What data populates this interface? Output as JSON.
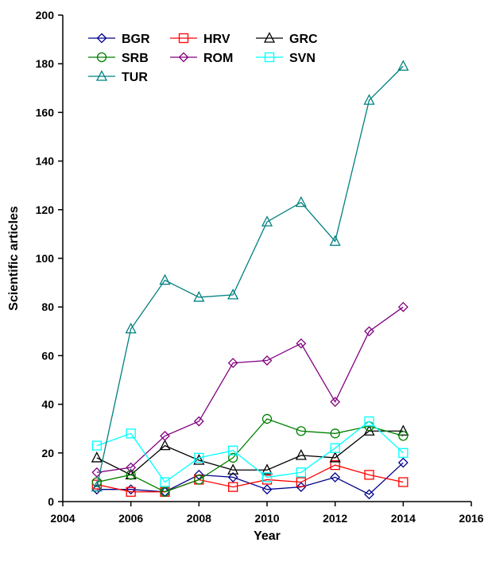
{
  "chart_data": {
    "type": "line",
    "title": "",
    "xlabel": "Year",
    "ylabel": "Scientific articles",
    "xlim": [
      2004,
      2016
    ],
    "ylim": [
      0,
      200
    ],
    "xticks": [
      2004,
      2006,
      2008,
      2010,
      2012,
      2014,
      2016
    ],
    "yticks": [
      0,
      20,
      40,
      60,
      80,
      100,
      120,
      140,
      160,
      180,
      200
    ],
    "x": [
      2005,
      2006,
      2007,
      2008,
      2009,
      2010,
      2011,
      2012,
      2013,
      2014
    ],
    "grid": false,
    "legend_position": "top-left",
    "series": [
      {
        "name": "BGR",
        "color": "#00008B",
        "marker": "diamond",
        "values": [
          5,
          5,
          4,
          11,
          10,
          5,
          6,
          10,
          3,
          16
        ]
      },
      {
        "name": "HRV",
        "color": "#FF0000",
        "marker": "square",
        "values": [
          7,
          4,
          4,
          9,
          6,
          9,
          8,
          15,
          11,
          8
        ]
      },
      {
        "name": "GRC",
        "color": "#000000",
        "marker": "triangle",
        "values": [
          18,
          11,
          23,
          17,
          13,
          13,
          19,
          18,
          29,
          29
        ]
      },
      {
        "name": "SRB",
        "color": "#008000",
        "marker": "circle",
        "values": [
          8,
          11,
          4,
          9,
          18,
          34,
          29,
          28,
          31,
          27
        ]
      },
      {
        "name": "ROM",
        "color": "#800080",
        "marker": "diamond",
        "values": [
          12,
          14,
          27,
          33,
          57,
          58,
          65,
          41,
          70,
          80
        ]
      },
      {
        "name": "SVN",
        "color": "#00FFFF",
        "marker": "square",
        "values": [
          23,
          28,
          8,
          18,
          21,
          10,
          12,
          22,
          33,
          20
        ]
      },
      {
        "name": "TUR",
        "color": "#008080",
        "marker": "triangle",
        "values": [
          6,
          71,
          91,
          84,
          85,
          115,
          123,
          107,
          165,
          179
        ]
      }
    ]
  }
}
